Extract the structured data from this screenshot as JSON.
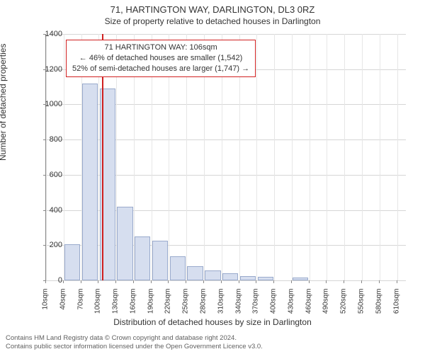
{
  "title": "71, HARTINGTON WAY, DARLINGTON, DL3 0RZ",
  "subtitle": "Size of property relative to detached houses in Darlington",
  "y_axis_title": "Number of detached properties",
  "x_axis_title": "Distribution of detached houses by size in Darlington",
  "chart": {
    "type": "histogram",
    "background_color": "#ffffff",
    "grid_color": "#d6d6d6",
    "bar_fill": "#d6deef",
    "bar_stroke": "#99aacc",
    "marker_color": "#d02020",
    "ylim": [
      0,
      1400
    ],
    "ytick_step": 200,
    "yticks": [
      0,
      200,
      400,
      600,
      800,
      1000,
      1200,
      1400
    ],
    "xticks": [
      "10sqm",
      "40sqm",
      "70sqm",
      "100sqm",
      "130sqm",
      "160sqm",
      "190sqm",
      "220sqm",
      "250sqm",
      "280sqm",
      "310sqm",
      "340sqm",
      "370sqm",
      "400sqm",
      "430sqm",
      "460sqm",
      "490sqm",
      "520sqm",
      "550sqm",
      "580sqm",
      "610sqm"
    ],
    "xtick_values": [
      10,
      40,
      70,
      100,
      130,
      160,
      190,
      220,
      250,
      280,
      310,
      340,
      370,
      400,
      430,
      460,
      490,
      520,
      550,
      580,
      610
    ],
    "xlim": [
      10,
      625
    ],
    "bars": [
      {
        "x": 25,
        "value": 0
      },
      {
        "x": 55,
        "value": 205
      },
      {
        "x": 85,
        "value": 1120
      },
      {
        "x": 115,
        "value": 1090
      },
      {
        "x": 145,
        "value": 420
      },
      {
        "x": 175,
        "value": 250
      },
      {
        "x": 205,
        "value": 225
      },
      {
        "x": 235,
        "value": 135
      },
      {
        "x": 265,
        "value": 80
      },
      {
        "x": 295,
        "value": 55
      },
      {
        "x": 325,
        "value": 40
      },
      {
        "x": 355,
        "value": 25
      },
      {
        "x": 385,
        "value": 20
      },
      {
        "x": 415,
        "value": 0
      },
      {
        "x": 445,
        "value": 15
      },
      {
        "x": 475,
        "value": 0
      },
      {
        "x": 505,
        "value": 0
      },
      {
        "x": 535,
        "value": 0
      },
      {
        "x": 565,
        "value": 0
      },
      {
        "x": 595,
        "value": 0
      }
    ],
    "bar_width_ratio": 0.9,
    "marker_x": 106,
    "info_box": {
      "line1": "71 HARTINGTON WAY: 106sqm",
      "line2": "← 46% of detached houses are smaller (1,542)",
      "line3": "52% of semi-detached houses are larger (1,747) →"
    }
  },
  "attribution": {
    "line1": "Contains HM Land Registry data © Crown copyright and database right 2024.",
    "line2": "Contains public sector information licensed under the Open Government Licence v3.0."
  }
}
